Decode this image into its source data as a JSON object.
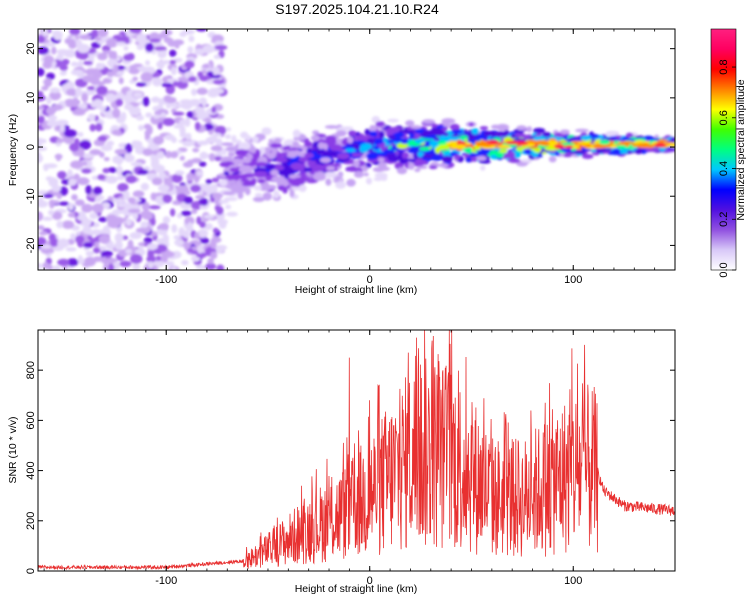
{
  "chart_data": [
    {
      "type": "heatmap",
      "title": "S197.2025.104.21.10.R24",
      "xlabel": "Height of straight line (km)",
      "ylabel": "Frequency (Hz)",
      "xlim": [
        -163,
        150
      ],
      "ylim": [
        -25,
        24
      ],
      "x_ticks": [
        "-100",
        "0",
        "100"
      ],
      "x_tick_values": [
        -100,
        0,
        100
      ],
      "y_ticks": [
        "-20",
        "-10",
        "0",
        "10",
        "20"
      ],
      "y_tick_values": [
        -20,
        -10,
        0,
        10,
        20
      ],
      "colorbar": {
        "label": "Normalized spectral amplitude",
        "range": [
          0,
          0.95
        ],
        "ticks": [
          "0.0",
          "0.2",
          "0.4",
          "0.6",
          "0.8"
        ],
        "tick_values": [
          0,
          0.2,
          0.4,
          0.6,
          0.8
        ],
        "colors": [
          "#ffffff",
          "#d8c8f8",
          "#9050e0",
          "#5010e0",
          "#0000ff",
          "#00c8ff",
          "#00ff80",
          "#40ff00",
          "#ffff00",
          "#ff8000",
          "#ff0000",
          "#ff0060",
          "#ff2080"
        ]
      },
      "regions": [
        {
          "description": "noise",
          "x": [
            -163,
            -72
          ],
          "y": [
            -25,
            24
          ],
          "amplitude": 0.15
        },
        {
          "description": "signal",
          "x": [
            -72,
            150
          ],
          "center_frequency": [
            -5,
            -4,
            0,
            0.5,
            0.5
          ],
          "center_x": [
            -72,
            -40,
            0,
            40,
            150
          ],
          "amplitude": [
            0.2,
            0.3,
            0.4,
            0.7,
            0.8
          ]
        }
      ]
    },
    {
      "type": "line",
      "xlabel": "Height of straight line (km)",
      "ylabel": "SNR (10 * v/v)",
      "xlim": [
        -163,
        150
      ],
      "ylim": [
        0,
        960
      ],
      "x_ticks": [
        "-100",
        "0",
        "100"
      ],
      "x_tick_values": [
        -100,
        0,
        100
      ],
      "y_ticks": [
        "0",
        "200",
        "400",
        "600",
        "800"
      ],
      "y_tick_values": [
        0,
        200,
        400,
        600,
        800
      ],
      "line_color": "#e83030",
      "envelope": {
        "x": [
          -163,
          -100,
          -62,
          -50,
          -30,
          -10,
          0,
          10,
          20,
          30,
          40,
          50,
          60,
          75,
          90,
          100,
          110,
          115,
          125,
          150
        ],
        "y": [
          15,
          15,
          40,
          90,
          180,
          260,
          330,
          400,
          480,
          510,
          490,
          420,
          320,
          310,
          380,
          430,
          440,
          320,
          260,
          240
        ]
      },
      "peaks": [
        {
          "x": -10,
          "y": 850
        },
        {
          "x": 19,
          "y": 870
        },
        {
          "x": 27,
          "y": 960
        },
        {
          "x": 37,
          "y": 720
        },
        {
          "x": 73,
          "y": 520
        },
        {
          "x": 0,
          "y": 680
        }
      ]
    }
  ]
}
